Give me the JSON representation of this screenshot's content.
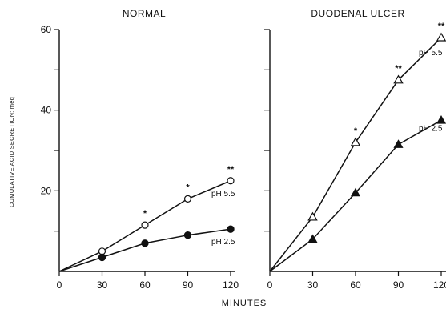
{
  "xlabel": "MINUTES",
  "ylabel": "CUMULATIVE ACID SECRETION: meq",
  "chart_data": [
    {
      "type": "line",
      "title": "NORMAL",
      "x": [
        0,
        30,
        60,
        90,
        120
      ],
      "xticks": [
        "0",
        "30",
        "60",
        "90",
        "120"
      ],
      "ylim": [
        0,
        60
      ],
      "yticks": [
        "20",
        "40",
        "60"
      ],
      "grid": false,
      "series": [
        {
          "name": "pH 5.5",
          "marker": "open-circle",
          "values": [
            0,
            5,
            11.5,
            18,
            22.5
          ],
          "significance": [
            "",
            "",
            "*",
            "*",
            "**"
          ]
        },
        {
          "name": "pH 2.5",
          "marker": "filled-circle",
          "values": [
            0,
            3.5,
            7,
            9,
            10.5
          ],
          "significance": [
            "",
            "",
            "",
            "",
            ""
          ]
        }
      ]
    },
    {
      "type": "line",
      "title": "DUODENAL ULCER",
      "x": [
        0,
        30,
        60,
        90,
        120
      ],
      "xticks": [
        "0",
        "30",
        "60",
        "90",
        "120"
      ],
      "ylim": [
        0,
        60
      ],
      "grid": false,
      "series": [
        {
          "name": "pH 5.5",
          "marker": "open-triangle",
          "values": [
            0,
            13.5,
            32,
            47.5,
            58
          ],
          "significance": [
            "",
            "",
            "*",
            "**",
            "**"
          ]
        },
        {
          "name": "pH 2.5",
          "marker": "filled-triangle",
          "values": [
            0,
            8,
            19.5,
            31.5,
            37.5
          ],
          "significance": [
            "",
            "",
            "",
            "",
            ""
          ]
        }
      ]
    }
  ]
}
